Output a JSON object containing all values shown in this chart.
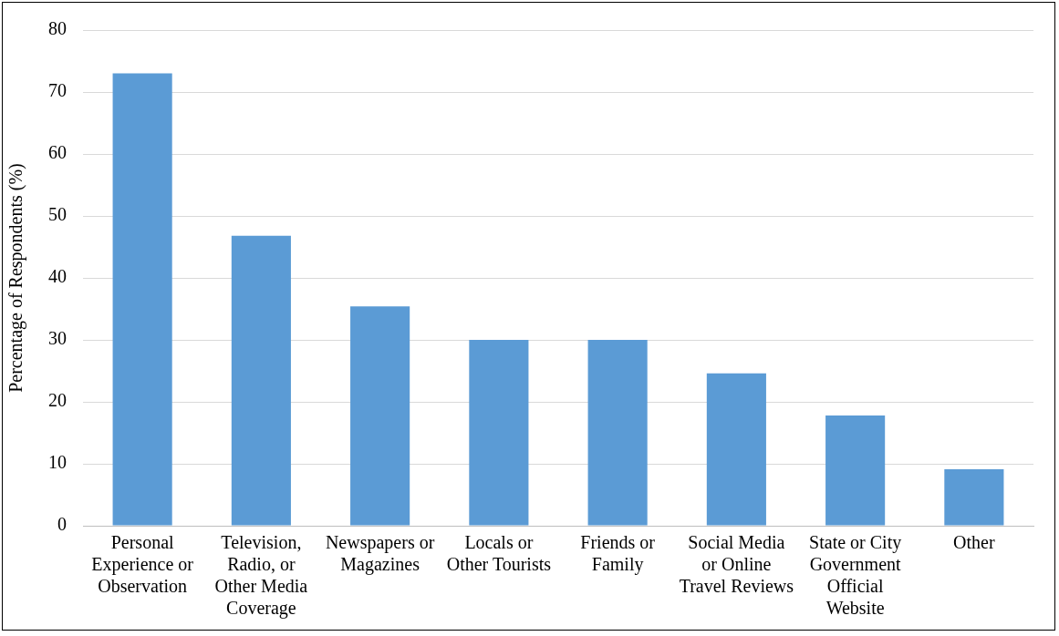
{
  "chart_data": {
    "type": "bar",
    "ylabel": "Percentage of Respondents (%)",
    "categories": [
      "Personal Experience or Observation",
      "Television, Radio, or Other Media Coverage",
      "Newspapers or Magazines",
      "Locals or Other Tourists",
      "Friends or Family",
      "Social Media or Online Travel Reviews",
      "State or City Government Official Website",
      "Other"
    ],
    "values": [
      73,
      46.8,
      35.4,
      30,
      30,
      24.6,
      17.8,
      9.1
    ],
    "color": "#5b9bd5",
    "ylim": [
      0,
      80
    ],
    "yticks": [
      0,
      10,
      20,
      30,
      40,
      50,
      60,
      70,
      80
    ],
    "grid": "y",
    "legend": false
  }
}
